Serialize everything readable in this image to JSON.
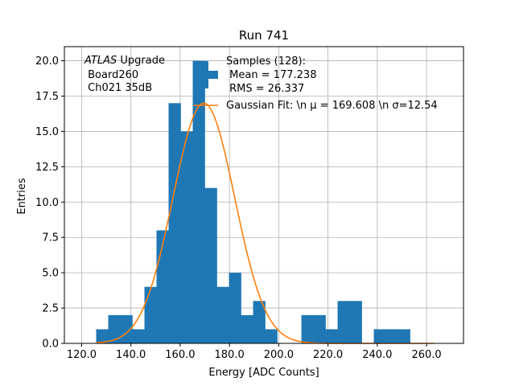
{
  "chart_data": {
    "type": "bar",
    "title": "Run 741",
    "xlabel": "Energy [ADC Counts]",
    "ylabel": "Entries",
    "xlim": [
      113,
      275
    ],
    "ylim": [
      0,
      21
    ],
    "x_ticks": [
      120,
      140,
      160,
      180,
      200,
      220,
      240,
      260
    ],
    "x_tick_labels": [
      "120.0",
      "140.0",
      "160.0",
      "180.0",
      "200.0",
      "220.0",
      "240.0",
      "260.0"
    ],
    "y_ticks": [
      0,
      2.5,
      5,
      7.5,
      10,
      12.5,
      15,
      17.5,
      20
    ],
    "y_tick_labels": [
      "0.0",
      "2.5",
      "5.0",
      "7.5",
      "10.0",
      "12.5",
      "15.0",
      "17.5",
      "20.0"
    ],
    "grid": true,
    "bin_width": 4.9,
    "histogram": {
      "name": "Samples (128):",
      "color": "#1f77b4",
      "bin_edges": [
        125.9,
        130.8,
        135.7,
        140.6,
        145.5,
        150.4,
        155.3,
        160.2,
        165.1,
        170.0,
        174.9,
        179.8,
        184.7,
        189.6,
        194.5,
        199.4,
        204.3,
        209.2,
        214.1,
        219.0,
        223.9,
        228.8,
        233.7,
        238.6,
        243.5,
        248.4,
        253.3,
        258.2,
        263.1
      ],
      "counts": [
        1,
        2,
        2,
        1,
        4,
        8,
        17,
        15,
        20,
        11,
        4,
        5,
        2,
        3,
        1,
        0,
        0,
        2,
        2,
        1,
        3,
        3,
        0,
        1,
        1,
        1,
        0,
        0
      ]
    },
    "fit": {
      "type": "gaussian",
      "color": "#ff7f0e",
      "mu": 169.608,
      "sigma": 12.54,
      "amplitude": 17.0
    },
    "legend": {
      "placement": "top-right",
      "entries": [
        {
          "kind": "errorbar",
          "color": "#1f77b4",
          "lines": [
            "Samples (128):",
            " Mean = 177.238",
            " RMS = 26.337"
          ]
        },
        {
          "kind": "line",
          "color": "#ff7f0e",
          "lines": [
            "Gaussian Fit: \\n μ = 169.608 \\n σ=12.54"
          ]
        }
      ]
    },
    "annotation": {
      "placement": "top-left",
      "italic_part": "ATLAS",
      "rest_part": " Upgrade",
      "lines": [
        " Board260",
        " Ch021 35dB"
      ]
    }
  }
}
